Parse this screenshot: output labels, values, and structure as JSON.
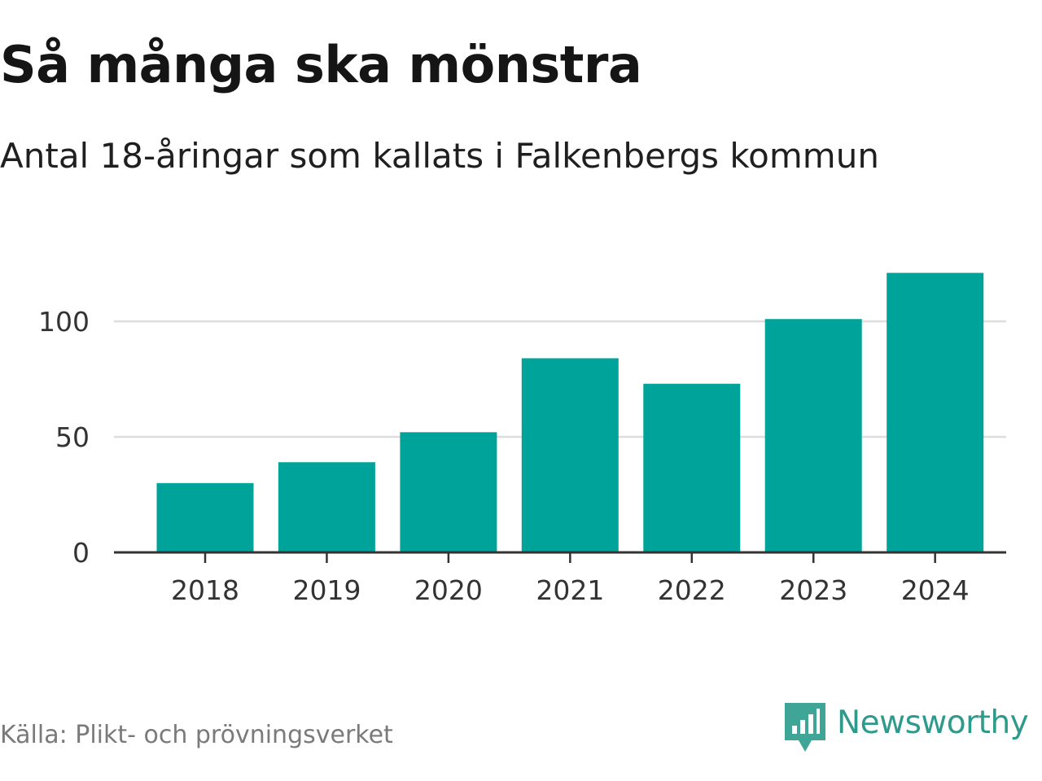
{
  "title": "Så många ska mönstra",
  "subtitle": "Antal 18-åringar som kallats i Falkenbergs kommun",
  "source": "Källa: Plikt- och prövningsverket",
  "brand": {
    "name": "Newsworthy",
    "icon": "newsworthy-logo-icon",
    "color": "#2e9a8c"
  },
  "colors": {
    "bar": "#00a39a",
    "grid": "#dddddd",
    "axis": "#333333"
  },
  "chart_data": {
    "type": "bar",
    "categories": [
      "2018",
      "2019",
      "2020",
      "2021",
      "2022",
      "2023",
      "2024"
    ],
    "values": [
      30,
      39,
      52,
      84,
      73,
      101,
      121
    ],
    "ylim": [
      0,
      125
    ],
    "yticks": [
      0,
      50,
      100
    ],
    "grid": true,
    "legend": "none",
    "xlabel": "",
    "ylabel": ""
  }
}
